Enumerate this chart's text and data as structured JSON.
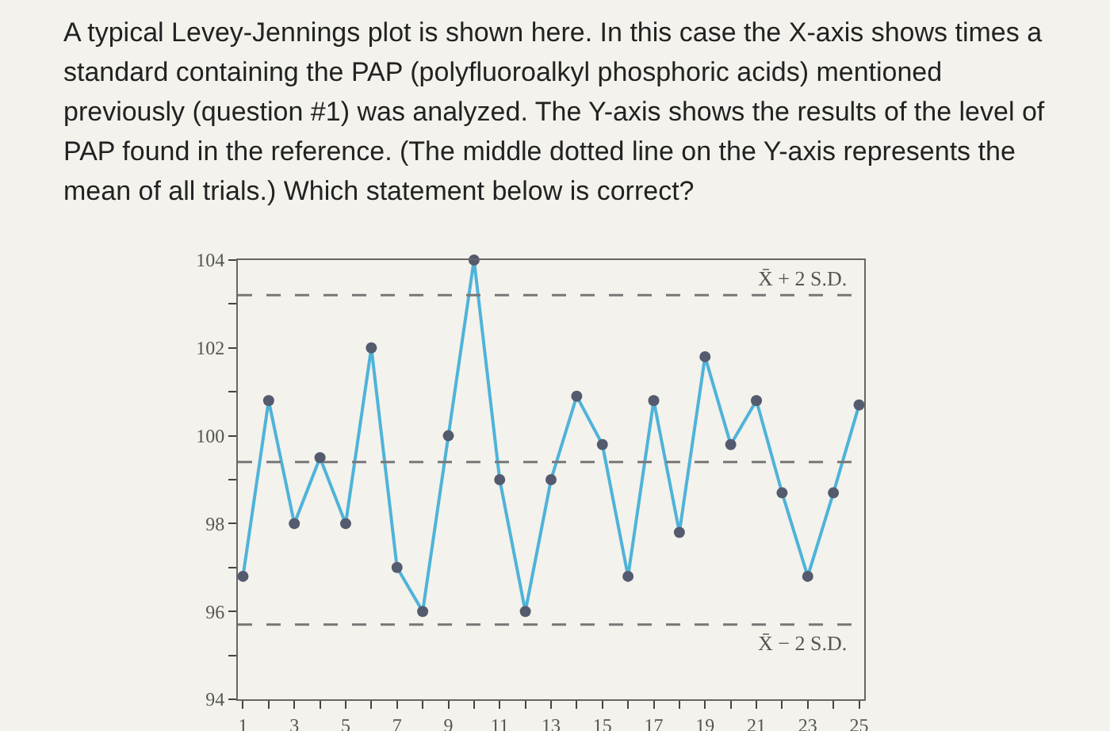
{
  "chart_data": {
    "type": "line",
    "title": "A typical Levey-Jennings plot is shown here. In this case the X-axis shows times a standard containing the PAP (polyfluoroalkyl phosphoric acids) mentioned previously (question #1) was analyzed. The Y-axis shows the results of the level of PAP found in the reference. (The middle dotted line on the Y-axis represents the mean of all trials.) Which statement below is correct?",
    "x": [
      1,
      2,
      3,
      4,
      5,
      6,
      7,
      8,
      9,
      10,
      11,
      12,
      13,
      14,
      15,
      16,
      17,
      18,
      19,
      20,
      21,
      22,
      23,
      24,
      25
    ],
    "series": [
      {
        "color": "#4fb3d9",
        "values": [
          96.8,
          100.8,
          98,
          99.5,
          98,
          102,
          97,
          96,
          100,
          104,
          99,
          96,
          99,
          100.9,
          99.8,
          96.8,
          100.8,
          97.8,
          101.8,
          99.8,
          100.8,
          98.7,
          96.8,
          98.7,
          100.7
        ]
      }
    ],
    "xlim": [
      0.8,
      25.2
    ],
    "ylim": [
      94,
      104
    ],
    "xticks": [
      1,
      {
        "value": 2,
        "label": null
      },
      3,
      {
        "value": 4,
        "label": null
      },
      5,
      {
        "value": 6,
        "label": null
      },
      7,
      {
        "value": 8,
        "label": null
      },
      9,
      {
        "value": 10,
        "label": null
      },
      11,
      {
        "value": 12,
        "label": null
      },
      13,
      {
        "value": 14,
        "label": null
      },
      15,
      {
        "value": 16,
        "label": null
      },
      17,
      {
        "value": 18,
        "label": null
      },
      19,
      {
        "value": 20,
        "label": null
      },
      21,
      {
        "value": 22,
        "label": null
      },
      23,
      {
        "value": 24,
        "label": null
      },
      25
    ],
    "yticks": [
      94,
      {
        "value": 95,
        "label": null
      },
      96,
      {
        "value": 97,
        "label": null
      },
      98,
      {
        "value": 99,
        "label": null
      },
      100,
      {
        "value": 101,
        "label": null
      },
      102,
      {
        "value": 103,
        "label": null
      },
      104
    ],
    "ref_lines": [
      {
        "axis": "y",
        "value": 103.2,
        "label": "X̄ + 2 S.D.",
        "line_style": "dashed"
      },
      {
        "axis": "y",
        "value": 99.4,
        "label": null,
        "line_style": "dashed"
      },
      {
        "axis": "y",
        "value": 95.7,
        "label": "X̄ − 2 S.D.",
        "line_style": "dashed"
      }
    ],
    "grid": false,
    "marker": "circle",
    "line_style": "solid"
  }
}
